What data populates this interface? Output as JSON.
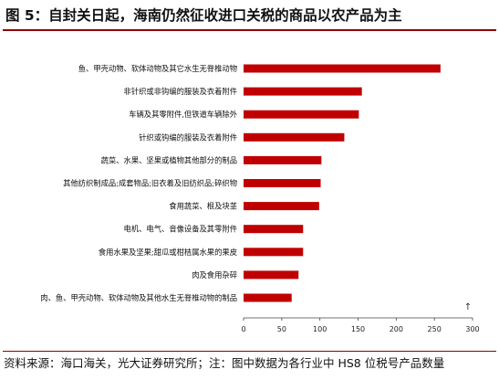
{
  "figure": {
    "title": "图 5：自封关日起，海南仍然征收进口关税的商品以农产品为主",
    "source": "资料来源：海口海关，光大证券研究所；注：图中数据为各行业中 HS8 位税号产品数量"
  },
  "chart_data": {
    "type": "bar",
    "orientation": "horizontal",
    "title": "",
    "xlabel": "",
    "ylabel": "",
    "categories": [
      "鱼、甲壳动物、软体动物及其它水生无脊椎动物",
      "非针织或非钩编的服装及衣着附件",
      "车辆及其零附件,但铁道车辆除外",
      "针织或钩编的服装及衣着附件",
      "蔬菜、水果、坚果或植物其他部分的制品",
      "其他纺织制成品;成套物品;旧衣着及旧纺织品;碎织物",
      "食用蔬菜、根及块茎",
      "电机、电气、音像设备及其零附件",
      "食用水果及坚果;甜瓜或柑桔属水果的果皮",
      "肉及食用杂碎",
      "肉、鱼、甲壳动物、软体动物及其他水生无脊椎动物的制品"
    ],
    "values": [
      258,
      155,
      151,
      132,
      102,
      101,
      99,
      78,
      78,
      72,
      63
    ],
    "xlim": [
      0,
      300
    ],
    "xticks": [
      "0",
      "50",
      "100",
      "150",
      "200",
      "250",
      "300"
    ],
    "grid": false,
    "legend": "none",
    "bar_color": "#c00000",
    "corner_marker": "↑"
  }
}
